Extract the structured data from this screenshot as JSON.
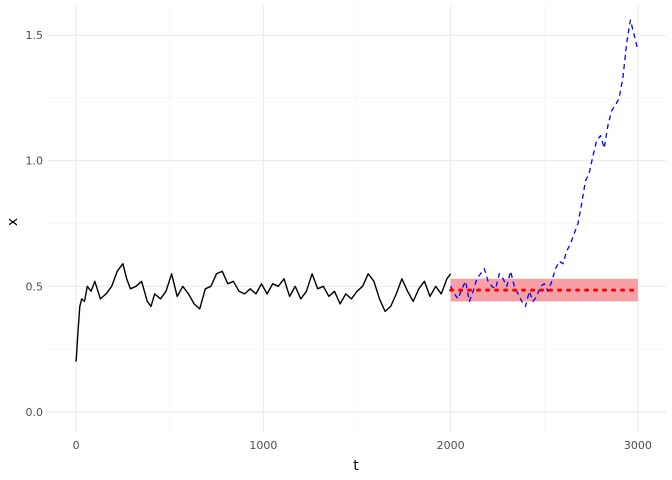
{
  "chart_data": {
    "type": "line",
    "title": "",
    "xlabel": "t",
    "ylabel": "x",
    "xlim": [
      -150,
      3150
    ],
    "ylim": [
      -0.08,
      1.62
    ],
    "grid": true,
    "legend": "none",
    "x_ticks": [
      0,
      1000,
      2000,
      3000
    ],
    "x_tick_labels": [
      "0",
      "1000",
      "2000",
      "3000"
    ],
    "y_ticks": [
      0.0,
      0.5,
      1.0,
      1.5
    ],
    "y_tick_labels": [
      "0.0",
      "0.5",
      "1.0",
      "1.5"
    ],
    "series": [
      {
        "style": "solid",
        "color": "#000000",
        "x": [
          0,
          10,
          20,
          30,
          45,
          60,
          80,
          100,
          130,
          160,
          190,
          220,
          250,
          270,
          290,
          320,
          350,
          380,
          400,
          420,
          450,
          480,
          510,
          540,
          570,
          600,
          630,
          660,
          690,
          720,
          750,
          780,
          810,
          840,
          870,
          900,
          930,
          960,
          990,
          1020,
          1050,
          1080,
          1110,
          1140,
          1170,
          1200,
          1230,
          1260,
          1290,
          1320,
          1350,
          1380,
          1410,
          1440,
          1470,
          1500,
          1530,
          1560,
          1590,
          1620,
          1650,
          1680,
          1710,
          1740,
          1770,
          1800,
          1830,
          1860,
          1890,
          1920,
          1950,
          1980,
          2000
        ],
        "y": [
          0.2,
          0.32,
          0.42,
          0.45,
          0.44,
          0.5,
          0.48,
          0.52,
          0.45,
          0.47,
          0.5,
          0.56,
          0.59,
          0.53,
          0.49,
          0.5,
          0.52,
          0.44,
          0.42,
          0.47,
          0.45,
          0.48,
          0.55,
          0.46,
          0.5,
          0.47,
          0.43,
          0.41,
          0.49,
          0.5,
          0.55,
          0.56,
          0.51,
          0.52,
          0.48,
          0.47,
          0.49,
          0.47,
          0.51,
          0.47,
          0.51,
          0.5,
          0.53,
          0.46,
          0.5,
          0.45,
          0.48,
          0.55,
          0.49,
          0.5,
          0.46,
          0.48,
          0.43,
          0.47,
          0.45,
          0.48,
          0.5,
          0.55,
          0.52,
          0.45,
          0.4,
          0.42,
          0.47,
          0.53,
          0.48,
          0.44,
          0.49,
          0.52,
          0.46,
          0.5,
          0.47,
          0.53,
          0.55
        ]
      },
      {
        "style": "dashed",
        "color": "#0000ff",
        "x": [
          2000,
          2020,
          2040,
          2060,
          2080,
          2100,
          2120,
          2140,
          2160,
          2180,
          2200,
          2220,
          2240,
          2260,
          2280,
          2300,
          2320,
          2340,
          2360,
          2380,
          2400,
          2420,
          2440,
          2460,
          2480,
          2500,
          2520,
          2540,
          2560,
          2580,
          2600,
          2620,
          2640,
          2660,
          2680,
          2700,
          2720,
          2740,
          2760,
          2780,
          2800,
          2820,
          2840,
          2860,
          2880,
          2900,
          2920,
          2940,
          2960,
          2980,
          3000
        ],
        "y": [
          0.5,
          0.47,
          0.45,
          0.49,
          0.52,
          0.44,
          0.48,
          0.53,
          0.55,
          0.57,
          0.52,
          0.5,
          0.49,
          0.55,
          0.53,
          0.5,
          0.56,
          0.5,
          0.47,
          0.44,
          0.42,
          0.48,
          0.44,
          0.46,
          0.5,
          0.51,
          0.48,
          0.52,
          0.57,
          0.6,
          0.59,
          0.64,
          0.67,
          0.71,
          0.75,
          0.83,
          0.92,
          0.95,
          1.02,
          1.08,
          1.1,
          1.05,
          1.14,
          1.2,
          1.22,
          1.25,
          1.33,
          1.47,
          1.56,
          1.5,
          1.44
        ]
      },
      {
        "style": "dotted",
        "color": "#ff0000",
        "x": [
          2000,
          3000
        ],
        "y": [
          0.485,
          0.485
        ]
      }
    ],
    "band": {
      "x": [
        2000,
        3000
      ],
      "y": [
        0.44,
        0.53
      ],
      "color": "#f4a0a5"
    }
  }
}
